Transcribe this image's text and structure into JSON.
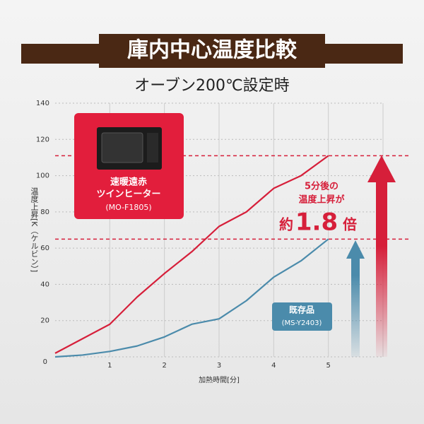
{
  "chart_data": {
    "type": "line",
    "title": "庫内中心温度比較",
    "subtitle": "オーブン200℃設定時",
    "xlabel": "加熱時間[分]",
    "ylabel": "温度上昇[K（ケルビン）]",
    "x": [
      0,
      0.5,
      1,
      1.5,
      2,
      2.5,
      3,
      3.5,
      4,
      4.5,
      5
    ],
    "xlim": [
      0,
      6
    ],
    "ylim": [
      0,
      140
    ],
    "xticks": [
      1,
      2,
      3,
      4,
      5
    ],
    "yticks": [
      0,
      20,
      40,
      60,
      80,
      100,
      120,
      140
    ],
    "grid": true,
    "series": [
      {
        "color": "#d61f3a",
        "values": [
          2,
          10,
          18,
          33,
          46,
          58,
          72,
          80,
          93,
          100,
          111
        ],
        "label": [
          "速暖遠赤",
          "ツインヒーター",
          "(MO-F1805)"
        ]
      },
      {
        "color": "#4b8bab",
        "values": [
          0,
          1,
          3,
          6,
          11,
          18,
          21,
          31,
          44,
          53,
          65
        ],
        "label": [
          "既存品",
          "(MS-Y2403)"
        ]
      }
    ],
    "callout": {
      "lines": [
        "5分後の",
        "温度上昇が"
      ],
      "prefix": "約",
      "value": 1.8,
      "suffix": "倍"
    }
  }
}
